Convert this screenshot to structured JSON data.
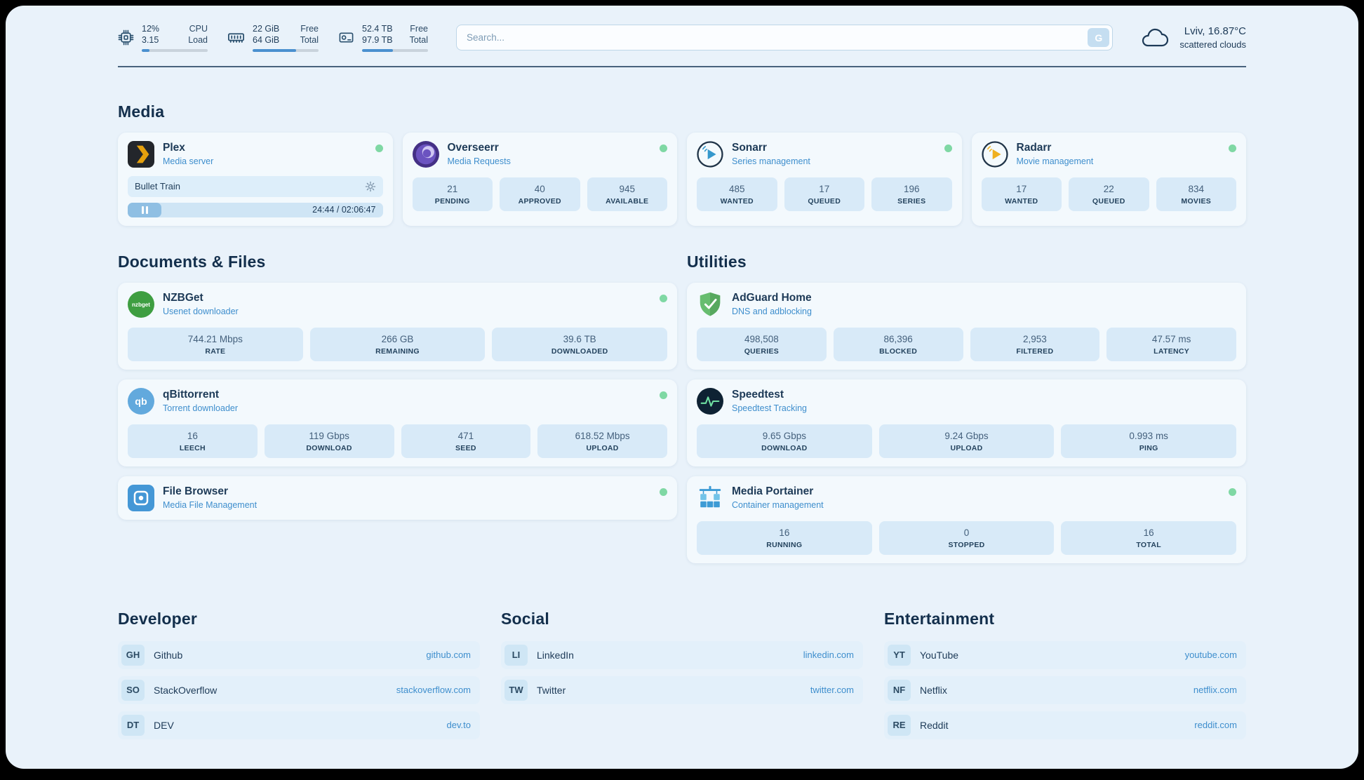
{
  "colors": {
    "background": "#e9f2fa",
    "card": "#f3f9fd",
    "stat_box": "#d8eaf8",
    "accent_blue": "#3e8ecd",
    "heading_navy": "#132f4c",
    "status_green": "#7fd8a4"
  },
  "topbar": {
    "cpu": {
      "percent": "12%",
      "percent_label": "CPU",
      "load": "3.15",
      "load_label": "Load",
      "progress": 12
    },
    "ram": {
      "free": "22 GiB",
      "free_label": "Free",
      "total": "64 GiB",
      "total_label": "Total",
      "progress": 66
    },
    "disk": {
      "free": "52.4 TB",
      "free_label": "Free",
      "total": "97.9 TB",
      "total_label": "Total",
      "progress": 47
    },
    "search": {
      "placeholder": "Search...",
      "engine_button": "G"
    },
    "weather": {
      "location": "Lviv, 16.87°C",
      "condition": "scattered clouds"
    }
  },
  "sections": {
    "media": {
      "title": "Media",
      "plex": {
        "name": "Plex",
        "description": "Media server",
        "now_playing": {
          "title": "Bullet Train",
          "time": "24:44 / 02:06:47"
        }
      },
      "overseerr": {
        "name": "Overseerr",
        "description": "Media Requests",
        "stats": [
          {
            "value": "21",
            "label": "PENDING"
          },
          {
            "value": "40",
            "label": "APPROVED"
          },
          {
            "value": "945",
            "label": "AVAILABLE"
          }
        ]
      },
      "sonarr": {
        "name": "Sonarr",
        "description": "Series management",
        "stats": [
          {
            "value": "485",
            "label": "WANTED"
          },
          {
            "value": "17",
            "label": "QUEUED"
          },
          {
            "value": "196",
            "label": "SERIES"
          }
        ]
      },
      "radarr": {
        "name": "Radarr",
        "description": "Movie management",
        "stats": [
          {
            "value": "17",
            "label": "WANTED"
          },
          {
            "value": "22",
            "label": "QUEUED"
          },
          {
            "value": "834",
            "label": "MOVIES"
          }
        ]
      }
    },
    "documents": {
      "title": "Documents & Files",
      "nzbget": {
        "name": "NZBGet",
        "description": "Usenet downloader",
        "stats": [
          {
            "value": "744.21 Mbps",
            "label": "RATE"
          },
          {
            "value": "266 GB",
            "label": "REMAINING"
          },
          {
            "value": "39.6 TB",
            "label": "DOWNLOADED"
          }
        ]
      },
      "qbittorrent": {
        "name": "qBittorrent",
        "description": "Torrent downloader",
        "stats": [
          {
            "value": "16",
            "label": "LEECH"
          },
          {
            "value": "119 Gbps",
            "label": "DOWNLOAD"
          },
          {
            "value": "471",
            "label": "SEED"
          },
          {
            "value": "618.52 Mbps",
            "label": "UPLOAD"
          }
        ]
      },
      "filebrowser": {
        "name": "File Browser",
        "description": "Media File Management"
      }
    },
    "utilities": {
      "title": "Utilities",
      "adguard": {
        "name": "AdGuard Home",
        "description": "DNS and adblocking",
        "stats": [
          {
            "value": "498,508",
            "label": "QUERIES"
          },
          {
            "value": "86,396",
            "label": "BLOCKED"
          },
          {
            "value": "2,953",
            "label": "FILTERED"
          },
          {
            "value": "47.57 ms",
            "label": "LATENCY"
          }
        ]
      },
      "speedtest": {
        "name": "Speedtest",
        "description": "Speedtest Tracking",
        "stats": [
          {
            "value": "9.65 Gbps",
            "label": "DOWNLOAD"
          },
          {
            "value": "9.24 Gbps",
            "label": "UPLOAD"
          },
          {
            "value": "0.993 ms",
            "label": "PING"
          }
        ]
      },
      "portainer": {
        "name": "Media Portainer",
        "description": "Container management",
        "stats": [
          {
            "value": "16",
            "label": "RUNNING"
          },
          {
            "value": "0",
            "label": "STOPPED"
          },
          {
            "value": "16",
            "label": "TOTAL"
          }
        ]
      }
    },
    "bookmarks": {
      "developer": {
        "title": "Developer",
        "items": [
          {
            "abbr": "GH",
            "name": "Github",
            "url": "github.com"
          },
          {
            "abbr": "SO",
            "name": "StackOverflow",
            "url": "stackoverflow.com"
          },
          {
            "abbr": "DT",
            "name": "DEV",
            "url": "dev.to"
          }
        ]
      },
      "social": {
        "title": "Social",
        "items": [
          {
            "abbr": "LI",
            "name": "LinkedIn",
            "url": "linkedin.com"
          },
          {
            "abbr": "TW",
            "name": "Twitter",
            "url": "twitter.com"
          }
        ]
      },
      "entertainment": {
        "title": "Entertainment",
        "items": [
          {
            "abbr": "YT",
            "name": "YouTube",
            "url": "youtube.com"
          },
          {
            "abbr": "NF",
            "name": "Netflix",
            "url": "netflix.com"
          },
          {
            "abbr": "RE",
            "name": "Reddit",
            "url": "reddit.com"
          }
        ]
      }
    }
  }
}
